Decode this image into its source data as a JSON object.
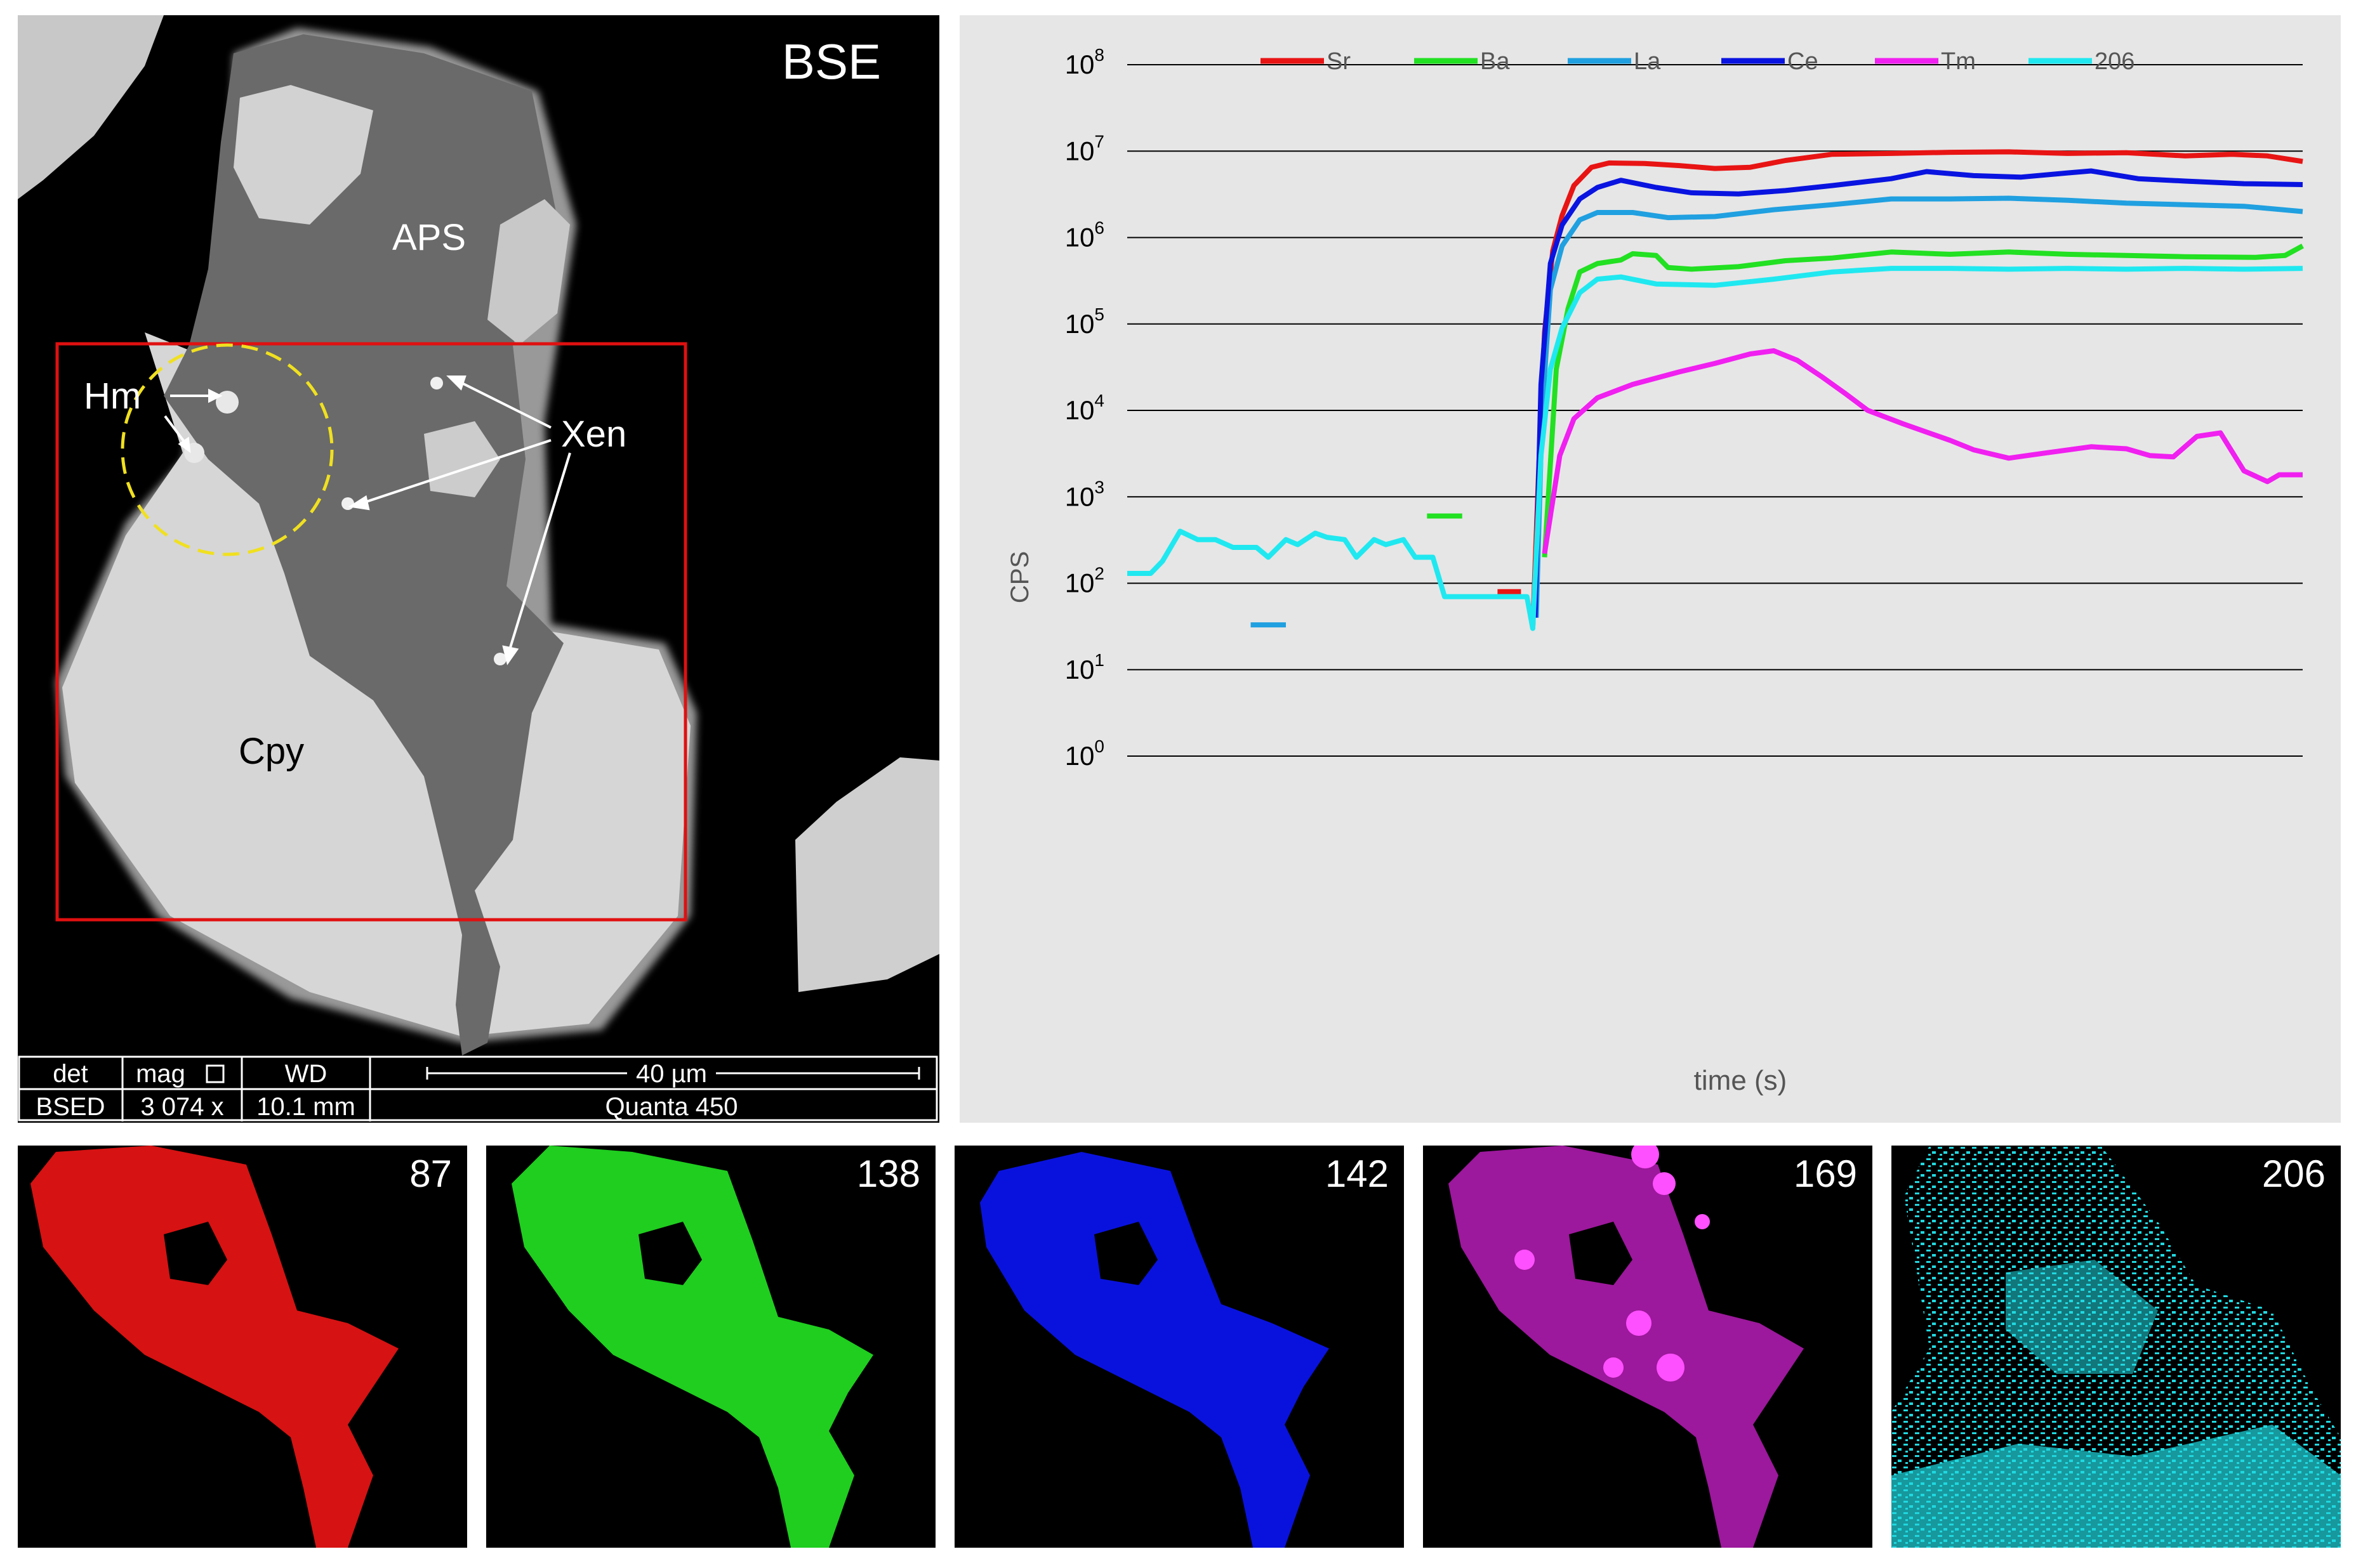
{
  "bse": {
    "title": "BSE",
    "labels": {
      "aps": "APS",
      "hm": "Hm",
      "xen": "Xen",
      "cpy": "Cpy"
    },
    "footer": {
      "det_label": "det",
      "det_value": "BSED",
      "mag_label": "mag",
      "mag_value": "3 074 x",
      "wd_label": "WD",
      "wd_value": "10.1 mm",
      "scale_label": "40 µm",
      "instrument": "Quanta 450"
    },
    "colors": {
      "roi": "#e01010",
      "spot": "#f0e020"
    }
  },
  "chart_data": {
    "type": "line",
    "xlabel": "time (s)",
    "ylabel": "CPS",
    "yscale": "log",
    "ylim": [
      1,
      100000000
    ],
    "yticks": [
      "10",
      "10",
      "10",
      "10",
      "10",
      "10",
      "10",
      "10",
      "10"
    ],
    "ytick_exponents": [
      "0",
      "1",
      "2",
      "3",
      "4",
      "5",
      "6",
      "7",
      "8"
    ],
    "grid": true,
    "legend_position": "top",
    "x_range": [
      0,
      100
    ],
    "series": [
      {
        "name": "Sr",
        "color": "#e81414",
        "segments": [
          [
            [
              31.5,
              80
            ],
            [
              33.5,
              80
            ]
          ],
          [
            [
              34.5,
              30
            ],
            [
              35,
              2000
            ],
            [
              35.5,
              80000
            ],
            [
              36.2,
              700000
            ],
            [
              37,
              1800000
            ],
            [
              38,
              4000000
            ],
            [
              39.5,
              6500000
            ],
            [
              41,
              7300000
            ],
            [
              44,
              7200000
            ],
            [
              47,
              6800000
            ],
            [
              50,
              6300000
            ],
            [
              53,
              6500000
            ],
            [
              56,
              7800000
            ],
            [
              60,
              9200000
            ],
            [
              65,
              9400000
            ],
            [
              70,
              9700000
            ],
            [
              75,
              9800000
            ],
            [
              80,
              9400000
            ],
            [
              85,
              9600000
            ],
            [
              90,
              8800000
            ],
            [
              94,
              9200000
            ],
            [
              97,
              8800000
            ],
            [
              100,
              7600000
            ]
          ]
        ]
      },
      {
        "name": "Ba",
        "color": "#22e022",
        "segments": [
          [
            [
              25.5,
              600
            ],
            [
              28.5,
              600
            ]
          ],
          [
            [
              35.5,
              200
            ],
            [
              36.5,
              30000
            ],
            [
              37.5,
              150000
            ],
            [
              38.5,
              400000
            ],
            [
              40,
              500000
            ],
            [
              42,
              550000
            ],
            [
              43,
              650000
            ],
            [
              45,
              620000
            ],
            [
              46,
              450000
            ],
            [
              48,
              430000
            ],
            [
              52,
              460000
            ],
            [
              56,
              540000
            ],
            [
              60,
              580000
            ],
            [
              65,
              680000
            ],
            [
              70,
              640000
            ],
            [
              75,
              680000
            ],
            [
              80,
              640000
            ],
            [
              85,
              620000
            ],
            [
              90,
              600000
            ],
            [
              96,
              590000
            ],
            [
              98.5,
              620000
            ],
            [
              100,
              800000
            ]
          ]
        ]
      },
      {
        "name": "La",
        "color": "#20a0e0",
        "segments": [
          [
            [
              10.5,
              33
            ],
            [
              13.5,
              33
            ]
          ],
          [
            [
              34.8,
              40
            ],
            [
              35.3,
              10000
            ],
            [
              36,
              250000
            ],
            [
              37,
              800000
            ],
            [
              38.5,
              1600000
            ],
            [
              40,
              1950000
            ],
            [
              43,
              1950000
            ],
            [
              46,
              1700000
            ],
            [
              50,
              1750000
            ],
            [
              55,
              2100000
            ],
            [
              60,
              2400000
            ],
            [
              65,
              2800000
            ],
            [
              70,
              2800000
            ],
            [
              75,
              2850000
            ],
            [
              80,
              2700000
            ],
            [
              85,
              2500000
            ],
            [
              90,
              2400000
            ],
            [
              95,
              2300000
            ],
            [
              100,
              2000000
            ]
          ]
        ]
      },
      {
        "name": "Ce",
        "color": "#0a14e0",
        "segments": [
          [
            [
              34.7,
              40
            ],
            [
              35.2,
              20000
            ],
            [
              36,
              500000
            ],
            [
              37,
              1400000
            ],
            [
              38.5,
              2800000
            ],
            [
              40,
              3800000
            ],
            [
              42,
              4600000
            ],
            [
              45,
              3800000
            ],
            [
              48,
              3300000
            ],
            [
              52,
              3200000
            ],
            [
              56,
              3500000
            ],
            [
              60,
              4000000
            ],
            [
              65,
              4800000
            ],
            [
              68,
              5800000
            ],
            [
              72,
              5200000
            ],
            [
              76,
              5000000
            ],
            [
              80,
              5600000
            ],
            [
              82,
              5900000
            ],
            [
              86,
              4800000
            ],
            [
              90,
              4500000
            ],
            [
              95,
              4200000
            ],
            [
              100,
              4100000
            ]
          ]
        ]
      },
      {
        "name": "Tm",
        "color": "#f020f0",
        "segments": [
          [
            [
              35.5,
              220
            ],
            [
              36.8,
              3000
            ],
            [
              38,
              8000
            ],
            [
              40,
              14000
            ],
            [
              43,
              20000
            ],
            [
              47,
              28000
            ],
            [
              50,
              35000
            ],
            [
              53,
              45000
            ],
            [
              55,
              49000
            ],
            [
              57,
              38000
            ],
            [
              59,
              25000
            ],
            [
              61,
              16000
            ],
            [
              63,
              10000
            ],
            [
              66,
              7000
            ],
            [
              70,
              4500
            ],
            [
              72,
              3500
            ],
            [
              75,
              2800
            ],
            [
              78,
              3200
            ],
            [
              82,
              3800
            ],
            [
              85,
              3600
            ],
            [
              87,
              3000
            ],
            [
              89,
              2900
            ],
            [
              91,
              5000
            ],
            [
              93,
              5500
            ],
            [
              95,
              2000
            ],
            [
              97,
              1500
            ],
            [
              98,
              1800
            ],
            [
              100,
              1800
            ]
          ]
        ]
      },
      {
        "name": "206",
        "color": "#20e8f0",
        "segments": [
          [
            [
              0,
              130
            ],
            [
              2,
              130
            ],
            [
              3,
              180
            ],
            [
              4.5,
              400
            ],
            [
              6,
              320
            ],
            [
              7.5,
              320
            ],
            [
              9,
              260
            ],
            [
              11,
              260
            ],
            [
              12,
              200
            ],
            [
              13.5,
              320
            ],
            [
              14.5,
              280
            ],
            [
              16,
              380
            ],
            [
              17,
              340
            ],
            [
              18.5,
              320
            ],
            [
              19.5,
              200
            ],
            [
              21,
              320
            ],
            [
              22,
              280
            ],
            [
              23.5,
              320
            ],
            [
              24.5,
              200
            ],
            [
              26,
              200
            ],
            [
              27,
              70
            ],
            [
              34,
              70
            ],
            [
              34.5,
              30
            ],
            [
              35.2,
              3000
            ],
            [
              36,
              30000
            ],
            [
              37,
              90000
            ],
            [
              38.5,
              230000
            ],
            [
              40,
              330000
            ],
            [
              42,
              350000
            ],
            [
              45,
              290000
            ],
            [
              50,
              280000
            ],
            [
              55,
              330000
            ],
            [
              60,
              400000
            ],
            [
              65,
              440000
            ],
            [
              70,
              440000
            ],
            [
              75,
              430000
            ],
            [
              80,
              440000
            ],
            [
              85,
              430000
            ],
            [
              90,
              440000
            ],
            [
              95,
              430000
            ],
            [
              100,
              440000
            ]
          ]
        ]
      }
    ]
  },
  "maps": [
    {
      "label": "87",
      "color": "#e81414"
    },
    {
      "label": "138",
      "color": "#22e022"
    },
    {
      "label": "142",
      "color": "#0a14f0"
    },
    {
      "label": "169",
      "color": "#d020d0"
    },
    {
      "label": "206",
      "color": "#20d8e0"
    }
  ]
}
